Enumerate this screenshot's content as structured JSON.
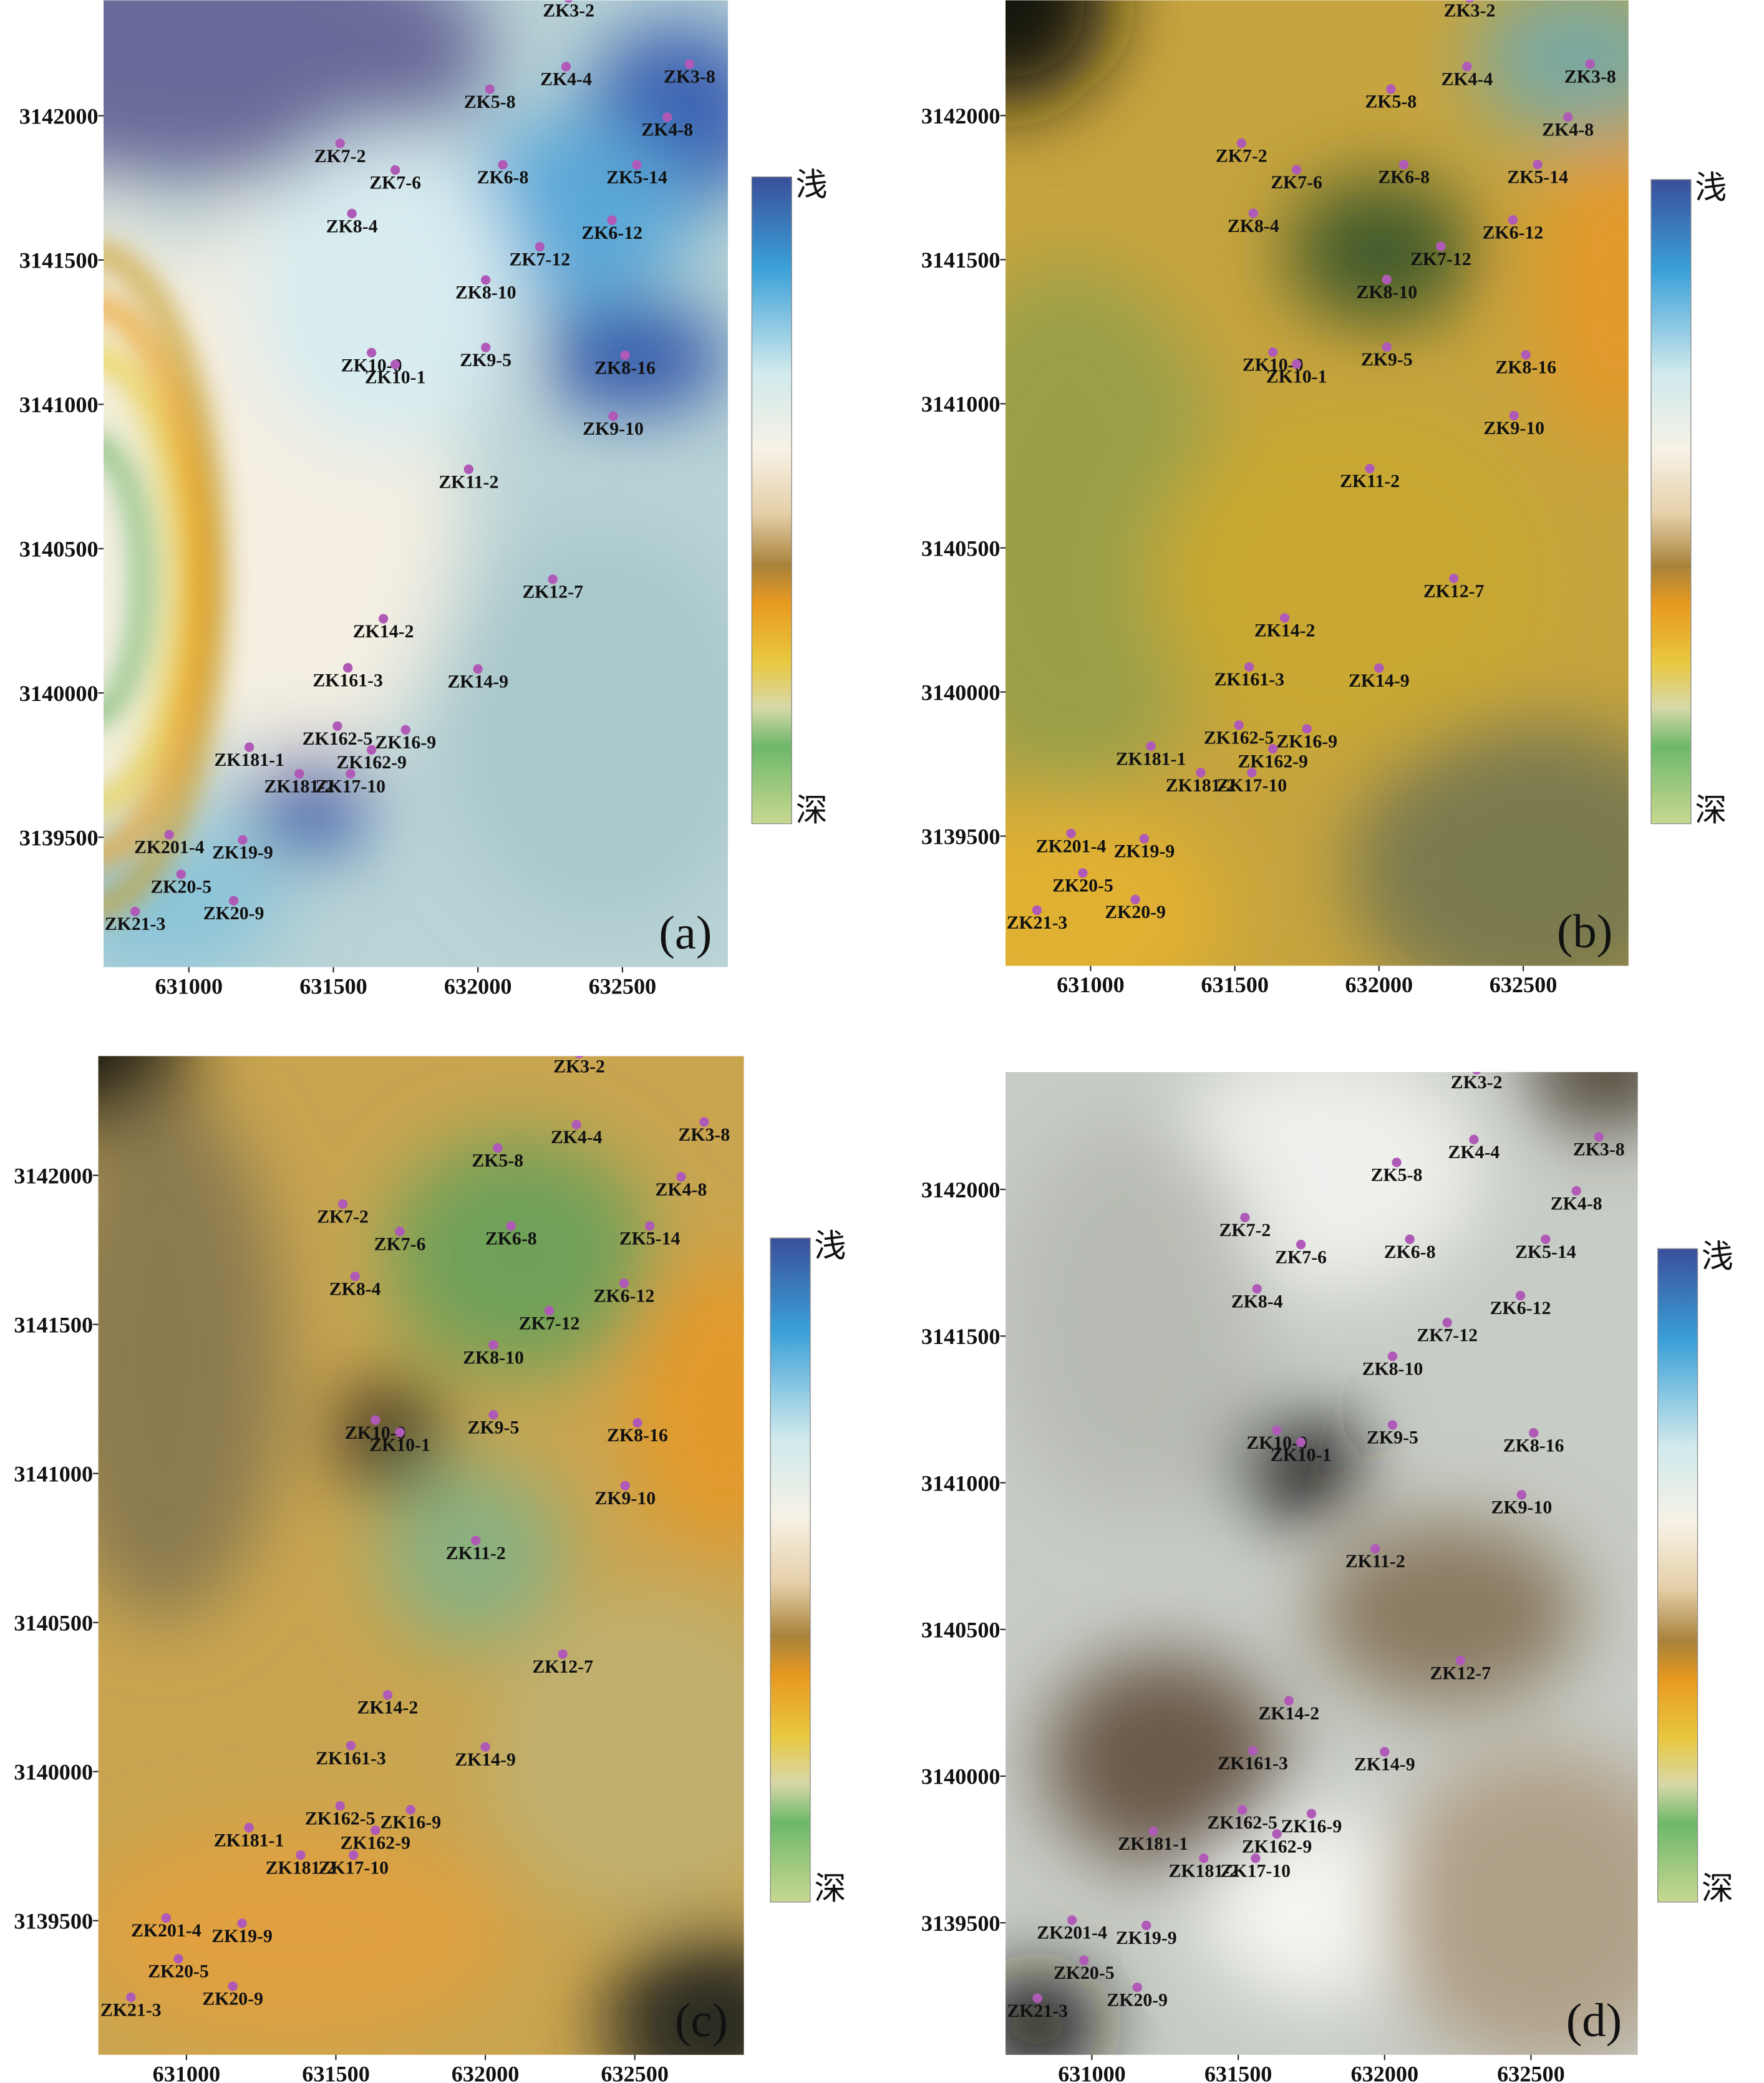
{
  "xlim": [
    630705,
    632865
  ],
  "ylim": [
    3139050,
    3142400
  ],
  "xticks": [
    631000,
    631500,
    632000,
    632500
  ],
  "yticks": [
    3139500,
    3140000,
    3140500,
    3141000,
    3141500,
    3142000
  ],
  "colorbar": {
    "top": "浅",
    "bottom": "深"
  },
  "boreholes": [
    {
      "name": "ZK3-2",
      "x": 632314,
      "y": 3142408
    },
    {
      "name": "ZK4-4",
      "x": 632305,
      "y": 3142170
    },
    {
      "name": "ZK3-8",
      "x": 632732,
      "y": 3142179
    },
    {
      "name": "ZK5-8",
      "x": 632041,
      "y": 3142092
    },
    {
      "name": "ZK4-8",
      "x": 632655,
      "y": 3141995
    },
    {
      "name": "ZK7-2",
      "x": 631523,
      "y": 3141904
    },
    {
      "name": "ZK7-6",
      "x": 631714,
      "y": 3141812
    },
    {
      "name": "ZK6-8",
      "x": 632086,
      "y": 3141830
    },
    {
      "name": "ZK5-14",
      "x": 632550,
      "y": 3141830
    },
    {
      "name": "ZK8-4",
      "x": 631564,
      "y": 3141661
    },
    {
      "name": "ZK6-12",
      "x": 632464,
      "y": 3141638
    },
    {
      "name": "ZK7-12",
      "x": 632214,
      "y": 3141546
    },
    {
      "name": "ZK8-10",
      "x": 632027,
      "y": 3141431
    },
    {
      "name": "ZK10-0",
      "x": 631632,
      "y": 3141179
    },
    {
      "name": "ZK10-1",
      "x": 631714,
      "y": 3141138
    },
    {
      "name": "ZK9-5",
      "x": 632027,
      "y": 3141197
    },
    {
      "name": "ZK8-16",
      "x": 632509,
      "y": 3141170
    },
    {
      "name": "ZK9-10",
      "x": 632468,
      "y": 3140959
    },
    {
      "name": "ZK11-2",
      "x": 631968,
      "y": 3140775
    },
    {
      "name": "ZK12-7",
      "x": 632259,
      "y": 3140394
    },
    {
      "name": "ZK14-2",
      "x": 631673,
      "y": 3140257
    },
    {
      "name": "ZK161-3",
      "x": 631550,
      "y": 3140087
    },
    {
      "name": "ZK14-9",
      "x": 632000,
      "y": 3140083
    },
    {
      "name": "ZK162-5",
      "x": 631514,
      "y": 3139885
    },
    {
      "name": "ZK16-9",
      "x": 631750,
      "y": 3139872
    },
    {
      "name": "ZK162-9",
      "x": 631632,
      "y": 3139803
    },
    {
      "name": "ZK181-1",
      "x": 631209,
      "y": 3139812
    },
    {
      "name": "ZK181-2",
      "x": 631382,
      "y": 3139720
    },
    {
      "name": "ZK17-10",
      "x": 631559,
      "y": 3139720
    },
    {
      "name": "ZK201-4",
      "x": 630932,
      "y": 3139509
    },
    {
      "name": "ZK19-9",
      "x": 631186,
      "y": 3139491
    },
    {
      "name": "ZK20-5",
      "x": 630973,
      "y": 3139372
    },
    {
      "name": "ZK20-9",
      "x": 631155,
      "y": 3139280
    },
    {
      "name": "ZK21-3",
      "x": 630814,
      "y": 3139243
    }
  ],
  "panels": [
    {
      "label": "(a)"
    },
    {
      "label": "(b)"
    },
    {
      "label": "(c)"
    },
    {
      "label": "(d)"
    }
  ]
}
